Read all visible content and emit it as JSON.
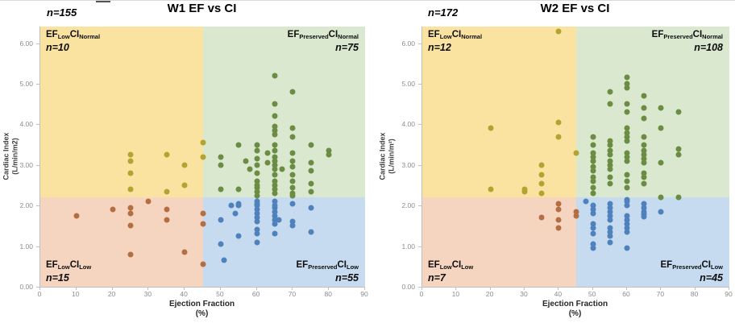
{
  "figure": {
    "background": "#ffffff"
  },
  "chart_data": [
    {
      "type": "scatter",
      "title": "W1 EF vs CI",
      "total_label": "n=155",
      "x_axis": {
        "label_line1": "Ejection Fraction",
        "label_line2": "(%)",
        "min": 0,
        "max": 90,
        "ticks": [
          "0",
          "10",
          "20",
          "30",
          "40",
          "50",
          "60",
          "70",
          "80",
          "90"
        ]
      },
      "y_axis": {
        "label_line1": "Cardiac Index",
        "label_line2": "(L/min/m2)",
        "min": 0,
        "max": 6.41,
        "ticks": [
          "0.00",
          "1.00",
          "2.00",
          "3.00",
          "4.00",
          "5.00",
          "6.00"
        ]
      },
      "boundaries": {
        "ef_split": 45,
        "ci_split": 2.2
      },
      "quadrants": {
        "top_left": {
          "ef": "EF",
          "ef_sub": "Low",
          "ci": "CI",
          "ci_sub": "Normal",
          "n": "n=10",
          "bg": "#FAE3A1"
        },
        "top_right": {
          "ef": "EF",
          "ef_sub": "Preserved",
          "ci": "CI",
          "ci_sub": "Normal",
          "n": "n=75",
          "bg": "#D9E8CF"
        },
        "bottom_left": {
          "ef": "EF",
          "ef_sub": "Low",
          "ci": "CI",
          "ci_sub": "Low",
          "n": "n=15",
          "bg": "#F6D5C0"
        },
        "bottom_right": {
          "ef": "EF",
          "ef_sub": "Preserved",
          "ci": "CI",
          "ci_sub": "Low",
          "n": "n=55",
          "bg": "#C6DBEF"
        }
      },
      "series": [
        {
          "name": "EF Low / CI Normal",
          "color": "#B3A431",
          "points": [
            [
              25,
              3.25
            ],
            [
              25,
              3.1
            ],
            [
              25,
              2.8
            ],
            [
              25,
              2.4
            ],
            [
              35,
              3.25
            ],
            [
              35,
              2.35
            ],
            [
              40,
              3.0
            ],
            [
              40,
              2.5
            ],
            [
              45,
              3.55
            ],
            [
              45,
              3.2
            ]
          ]
        },
        {
          "name": "EF Preserved / CI Normal",
          "color": "#6B8C43",
          "points": [
            [
              65,
              5.2
            ],
            [
              70,
              4.8
            ],
            [
              65,
              4.5
            ],
            [
              65,
              4.2
            ],
            [
              65,
              3.95
            ],
            [
              65,
              3.85
            ],
            [
              70,
              3.9
            ],
            [
              65,
              3.75
            ],
            [
              70,
              3.7
            ],
            [
              50,
              3.2
            ],
            [
              55,
              3.5
            ],
            [
              57,
              3.1
            ],
            [
              60,
              3.5
            ],
            [
              60,
              3.35
            ],
            [
              63,
              3.3
            ],
            [
              65,
              3.5
            ],
            [
              65,
              3.35
            ],
            [
              65,
              3.2
            ],
            [
              70,
              3.3
            ],
            [
              75,
              3.5
            ],
            [
              80,
              3.35
            ],
            [
              80,
              3.25
            ],
            [
              50,
              3.0
            ],
            [
              58,
              2.9
            ],
            [
              60,
              3.15
            ],
            [
              60,
              3.0
            ],
            [
              60,
              2.8
            ],
            [
              63,
              3.05
            ],
            [
              65,
              3.1
            ],
            [
              65,
              3.0
            ],
            [
              65,
              2.9
            ],
            [
              67,
              2.9
            ],
            [
              65,
              2.75
            ],
            [
              70,
              3.1
            ],
            [
              70,
              2.95
            ],
            [
              70,
              2.75
            ],
            [
              75,
              3.05
            ],
            [
              75,
              2.85
            ],
            [
              50,
              2.4
            ],
            [
              55,
              2.4
            ],
            [
              60,
              2.6
            ],
            [
              60,
              2.5
            ],
            [
              60,
              2.45
            ],
            [
              60,
              2.35
            ],
            [
              60,
              2.25
            ],
            [
              65,
              2.6
            ],
            [
              65,
              2.5
            ],
            [
              65,
              2.4
            ],
            [
              65,
              2.3
            ],
            [
              70,
              2.6
            ],
            [
              70,
              2.45
            ],
            [
              70,
              2.3
            ],
            [
              70,
              2.25
            ],
            [
              75,
              2.55
            ],
            [
              75,
              2.35
            ]
          ]
        },
        {
          "name": "EF Low / CI Low",
          "color": "#B46E44",
          "points": [
            [
              10,
              1.75
            ],
            [
              20,
              1.9
            ],
            [
              25,
              1.95
            ],
            [
              25,
              1.8
            ],
            [
              25,
              1.5
            ],
            [
              25,
              0.8
            ],
            [
              30,
              2.1
            ],
            [
              35,
              1.9
            ],
            [
              35,
              1.65
            ],
            [
              40,
              0.85
            ],
            [
              45,
              1.8
            ],
            [
              45,
              1.55
            ],
            [
              45,
              0.55
            ]
          ]
        },
        {
          "name": "EF Preserved / CI Low",
          "color": "#4F81BD",
          "points": [
            [
              53,
              2.0
            ],
            [
              54,
              1.8
            ],
            [
              55,
              2.05
            ],
            [
              55,
              2.0
            ],
            [
              60,
              2.1
            ],
            [
              60,
              2.05
            ],
            [
              60,
              2.0
            ],
            [
              60,
              1.9
            ],
            [
              60,
              1.8
            ],
            [
              60,
              1.7
            ],
            [
              60,
              1.6
            ],
            [
              60,
              1.4
            ],
            [
              60,
              1.3
            ],
            [
              60,
              1.1
            ],
            [
              65,
              2.1
            ],
            [
              65,
              2.0
            ],
            [
              65,
              1.95
            ],
            [
              65,
              1.85
            ],
            [
              65,
              1.75
            ],
            [
              65,
              1.65
            ],
            [
              66,
              1.65
            ],
            [
              65,
              1.55
            ],
            [
              65,
              1.3
            ],
            [
              70,
              2.05
            ],
            [
              70,
              1.6
            ],
            [
              70,
              1.5
            ],
            [
              75,
              1.95
            ],
            [
              75,
              1.35
            ],
            [
              50,
              1.65
            ],
            [
              50,
              1.05
            ],
            [
              51,
              0.65
            ],
            [
              55,
              1.25
            ]
          ]
        }
      ]
    },
    {
      "type": "scatter",
      "title": "W2 EF vs CI",
      "total_label": "n=172",
      "x_axis": {
        "label_line1": "Ejection Fraction",
        "label_line2": "(%)",
        "min": 0,
        "max": 90,
        "ticks": [
          "0",
          "10",
          "20",
          "30",
          "40",
          "50",
          "60",
          "70",
          "80",
          "90"
        ]
      },
      "y_axis": {
        "label_line1": "Cardiac Index",
        "label_line2": "(L/min/m²)",
        "min": 0,
        "max": 6.41,
        "ticks": [
          "0.00",
          "1.00",
          "2.00",
          "3.00",
          "4.00",
          "5.00",
          "6.00"
        ]
      },
      "boundaries": {
        "ef_split": 45,
        "ci_split": 2.2
      },
      "quadrants": {
        "top_left": {
          "ef": "EF",
          "ef_sub": "Low",
          "ci": "CI",
          "ci_sub": "Normal",
          "n": "n=12",
          "bg": "#FAE3A1"
        },
        "top_right": {
          "ef": "EF",
          "ef_sub": "Preserved",
          "ci": "CI",
          "ci_sub": "Normal",
          "n": "n=108",
          "bg": "#D9E8CF"
        },
        "bottom_left": {
          "ef": "EF",
          "ef_sub": "Low",
          "ci": "CI",
          "ci_sub": "Low",
          "n": "n=7",
          "bg": "#F6D5C0"
        },
        "bottom_right": {
          "ef": "EF",
          "ef_sub": "Preserved",
          "ci": "CI",
          "ci_sub": "Low",
          "n": "n=45",
          "bg": "#C6DBEF"
        }
      },
      "series": [
        {
          "name": "EF Low / CI Normal",
          "color": "#B3A431",
          "points": [
            [
              40,
              6.3
            ],
            [
              20,
              3.9
            ],
            [
              40,
              4.05
            ],
            [
              40,
              3.7
            ],
            [
              45,
              3.3
            ],
            [
              35,
              3.0
            ],
            [
              35,
              2.75
            ],
            [
              35,
              2.55
            ],
            [
              20,
              2.4
            ],
            [
              30,
              2.4
            ],
            [
              30,
              2.35
            ],
            [
              35,
              2.3
            ]
          ]
        },
        {
          "name": "EF Preserved / CI Normal",
          "color": "#6B8C43",
          "points": [
            [
              60,
              5.15
            ],
            [
              60,
              5.0
            ],
            [
              60,
              4.9
            ],
            [
              55,
              4.8
            ],
            [
              65,
              4.7
            ],
            [
              55,
              4.5
            ],
            [
              60,
              4.5
            ],
            [
              65,
              4.4
            ],
            [
              70,
              4.4
            ],
            [
              60,
              4.3
            ],
            [
              75,
              4.3
            ],
            [
              65,
              4.15
            ],
            [
              70,
              3.9
            ],
            [
              50,
              3.7
            ],
            [
              55,
              3.6
            ],
            [
              55,
              3.5
            ],
            [
              50,
              3.5
            ],
            [
              60,
              3.9
            ],
            [
              60,
              3.8
            ],
            [
              60,
              3.7
            ],
            [
              60,
              3.6
            ],
            [
              65,
              3.7
            ],
            [
              65,
              3.5
            ],
            [
              75,
              3.4
            ],
            [
              50,
              3.3
            ],
            [
              50,
              3.2
            ],
            [
              50,
              3.1
            ],
            [
              55,
              3.35
            ],
            [
              55,
              3.25
            ],
            [
              55,
              3.1
            ],
            [
              60,
              3.3
            ],
            [
              60,
              3.2
            ],
            [
              60,
              3.1
            ],
            [
              65,
              3.35
            ],
            [
              65,
              3.25
            ],
            [
              65,
              3.15
            ],
            [
              65,
              3.05
            ],
            [
              70,
              3.05
            ],
            [
              75,
              3.25
            ],
            [
              50,
              2.95
            ],
            [
              50,
              2.85
            ],
            [
              50,
              2.7
            ],
            [
              50,
              2.6
            ],
            [
              50,
              2.45
            ],
            [
              50,
              2.3
            ],
            [
              55,
              3.0
            ],
            [
              55,
              2.9
            ],
            [
              55,
              2.7
            ],
            [
              55,
              2.55
            ],
            [
              60,
              2.75
            ],
            [
              60,
              2.6
            ],
            [
              60,
              2.45
            ],
            [
              65,
              2.8
            ],
            [
              65,
              2.7
            ],
            [
              65,
              2.55
            ],
            [
              70,
              2.2
            ],
            [
              75,
              2.2
            ]
          ]
        },
        {
          "name": "EF Low / CI Low",
          "color": "#B46E44",
          "points": [
            [
              35,
              1.7
            ],
            [
              40,
              2.05
            ],
            [
              40,
              1.9
            ],
            [
              40,
              1.65
            ],
            [
              40,
              1.45
            ],
            [
              45,
              1.85
            ],
            [
              45,
              1.75
            ]
          ]
        },
        {
          "name": "EF Preserved / CI Low",
          "color": "#4F81BD",
          "points": [
            [
              48,
              2.1
            ],
            [
              50,
              2.0
            ],
            [
              50,
              1.9
            ],
            [
              50,
              1.8
            ],
            [
              50,
              1.55
            ],
            [
              50,
              1.45
            ],
            [
              50,
              1.3
            ],
            [
              50,
              1.05
            ],
            [
              50,
              0.95
            ],
            [
              55,
              2.05
            ],
            [
              55,
              1.95
            ],
            [
              55,
              1.85
            ],
            [
              55,
              1.75
            ],
            [
              55,
              1.65
            ],
            [
              55,
              1.45
            ],
            [
              55,
              1.35
            ],
            [
              55,
              1.25
            ],
            [
              55,
              1.1
            ],
            [
              60,
              2.15
            ],
            [
              60,
              2.1
            ],
            [
              60,
              2.0
            ],
            [
              60,
              1.75
            ],
            [
              60,
              1.65
            ],
            [
              60,
              1.55
            ],
            [
              60,
              1.45
            ],
            [
              60,
              1.35
            ],
            [
              60,
              0.95
            ],
            [
              65,
              2.05
            ],
            [
              65,
              1.95
            ],
            [
              65,
              1.85
            ],
            [
              65,
              1.78
            ],
            [
              65,
              1.72
            ],
            [
              70,
              1.85
            ]
          ]
        }
      ]
    }
  ]
}
